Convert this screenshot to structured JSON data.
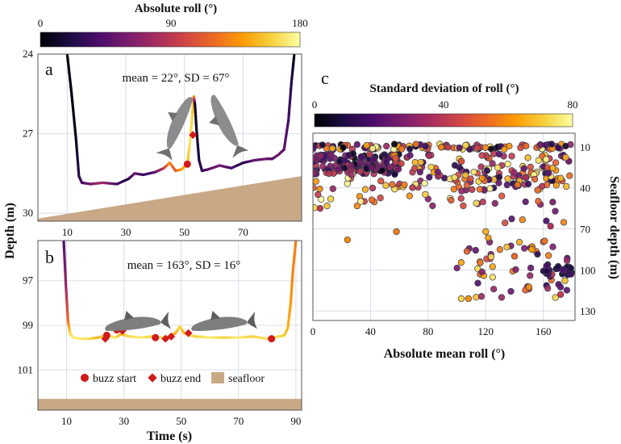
{
  "colors": {
    "inferno": [
      "#000004",
      "#1b0c41",
      "#4a0c6b",
      "#781c6d",
      "#a52c60",
      "#cf4446",
      "#ed6925",
      "#fb9b06",
      "#f7d13d",
      "#fcffa4"
    ],
    "seafloor": "#c9a886",
    "marker": "#d11a1a",
    "grid": "#d8dde8",
    "frame": "#555555"
  },
  "colorbar_a": {
    "label": "Absolute roll (°)",
    "ticks": [
      "0",
      "90",
      "180"
    ]
  },
  "colorbar_c": {
    "label": "Standard deviation of roll (°)",
    "ticks": [
      "0",
      "40",
      "80"
    ]
  },
  "legend": {
    "buzz_start": "buzz start",
    "buzz_end": "buzz end",
    "seafloor": "seafloor"
  },
  "shared": {
    "ylabel": "Depth (m)",
    "xlabel": "Time (s)"
  },
  "chart_data": [
    {
      "panel": "a",
      "type": "line",
      "stats": "mean = 22°, SD = 67°",
      "xlim": [
        0,
        90
      ],
      "ylim": [
        24,
        30.3
      ],
      "y_inverted": true,
      "xticks": [
        "10",
        "30",
        "50",
        "70"
      ],
      "yticks": [
        "24",
        "27",
        "30"
      ],
      "seafloor": [
        [
          0,
          30.2
        ],
        [
          90,
          28.6
        ]
      ],
      "x": [
        10,
        11.5,
        13,
        14,
        15,
        18,
        22,
        27,
        31,
        33,
        36,
        40,
        43,
        45,
        47,
        49,
        51,
        52,
        52.7,
        53.2,
        53.6,
        54.1,
        55,
        56,
        58,
        62,
        66,
        70,
        74,
        78,
        80,
        82,
        84,
        85.5,
        86.5,
        87.5
      ],
      "depth": [
        24,
        25.5,
        27.2,
        28.6,
        28.85,
        28.9,
        28.85,
        28.9,
        28.7,
        28.5,
        28.55,
        28.45,
        28.3,
        28.1,
        28.4,
        28.35,
        28.15,
        27.2,
        26.3,
        25.6,
        25.9,
        26.8,
        28,
        28.4,
        28.35,
        28.2,
        28.3,
        28.1,
        28.0,
        27.95,
        27.95,
        27.8,
        27.6,
        26.5,
        25.1,
        24
      ],
      "roll": [
        5,
        5,
        8,
        25,
        40,
        55,
        80,
        40,
        20,
        60,
        30,
        45,
        90,
        135,
        110,
        140,
        150,
        170,
        160,
        150,
        15,
        10,
        20,
        30,
        45,
        60,
        40,
        25,
        50,
        55,
        45,
        60,
        50,
        40,
        25,
        5
      ],
      "buzz_start": [
        [
          51,
          28.15
        ]
      ],
      "buzz_end": [
        [
          52.9,
          27.05
        ]
      ]
    },
    {
      "panel": "b",
      "type": "line",
      "stats": "mean = 163°, SD = 16°",
      "xlim": [
        0,
        92
      ],
      "ylim": [
        95.2,
        102.8
      ],
      "y_inverted": true,
      "xticks": [
        "10",
        "30",
        "50",
        "70",
        "90"
      ],
      "yticks": [
        "97",
        "99",
        "101"
      ],
      "seafloor": [
        [
          0,
          102.3
        ],
        [
          92,
          102.3
        ]
      ],
      "x": [
        9,
        9.8,
        10.5,
        11.3,
        12.5,
        15,
        18,
        21,
        24,
        27,
        29,
        32,
        36,
        40,
        43,
        46,
        48,
        49.5,
        51,
        53,
        55,
        60,
        65,
        70,
        75,
        80,
        84,
        86,
        87.2,
        88.2,
        89,
        90
      ],
      "depth": [
        95.2,
        97.3,
        98.8,
        99.4,
        99.55,
        99.6,
        99.6,
        99.55,
        99.45,
        99.55,
        99.4,
        99.5,
        99.55,
        99.5,
        99.55,
        99.5,
        99.35,
        99.05,
        99.35,
        99.45,
        99.5,
        99.55,
        99.55,
        99.55,
        99.5,
        99.6,
        99.5,
        99.45,
        99.1,
        98.0,
        96.5,
        95.2
      ],
      "roll": [
        40,
        75,
        120,
        165,
        170,
        172,
        165,
        150,
        160,
        170,
        150,
        165,
        172,
        160,
        170,
        155,
        145,
        165,
        150,
        170,
        160,
        172,
        160,
        172,
        160,
        168,
        165,
        160,
        150,
        140,
        130,
        130
      ],
      "buzz_start": [
        [
          24,
          99.45
        ],
        [
          27.5,
          99.2
        ],
        [
          41,
          99.55
        ],
        [
          81.5,
          99.6
        ]
      ],
      "buzz_end": [
        [
          23.5,
          99.6
        ],
        [
          29.5,
          99.25
        ],
        [
          44.5,
          99.6
        ],
        [
          46.5,
          99.5
        ],
        [
          52.5,
          99.35
        ]
      ]
    },
    {
      "panel": "c",
      "type": "scatter",
      "xlabel": "Absolute mean roll (°)",
      "ylabel": "Seafloor depth (m)",
      "xlim": [
        0,
        182
      ],
      "ylim": [
        0,
        137
      ],
      "y_inverted": true,
      "xticks": [
        "0",
        "40",
        "80",
        "120",
        "160"
      ],
      "yticks": [
        "10",
        "40",
        "70",
        "100",
        "130"
      ],
      "color_range": [
        0,
        80
      ],
      "clusters": [
        {
          "x_range": [
            0,
            180
          ],
          "y_range": [
            8,
            12
          ],
          "sd_range": [
            0,
            80
          ],
          "count": 110
        },
        {
          "x_range": [
            0,
            60
          ],
          "y_range": [
            15,
            30
          ],
          "sd_range": [
            0,
            45
          ],
          "count": 160
        },
        {
          "x_range": [
            55,
            180
          ],
          "y_range": [
            15,
            42
          ],
          "sd_range": [
            10,
            80
          ],
          "count": 150
        },
        {
          "x_range": [
            0,
            120
          ],
          "y_range": [
            30,
            55
          ],
          "sd_range": [
            30,
            80
          ],
          "count": 50
        },
        {
          "x_range": [
            125,
            178
          ],
          "y_range": [
            45,
            72
          ],
          "sd_range": [
            15,
            75
          ],
          "count": 12
        },
        {
          "x_range": [
            100,
            178
          ],
          "y_range": [
            76,
            122
          ],
          "sd_range": [
            10,
            75
          ],
          "count": 60
        },
        {
          "x_range": [
            160,
            180
          ],
          "y_range": [
            97,
            104
          ],
          "sd_range": [
            0,
            20
          ],
          "count": 25
        }
      ],
      "points": [
        [
          5,
          55
        ],
        [
          24,
          78
        ],
        [
          58,
          72
        ],
        [
          120,
          72
        ],
        [
          165,
          68
        ],
        [
          103,
          121
        ],
        [
          108,
          121
        ],
        [
          172,
          118
        ],
        [
          140,
          90
        ],
        [
          152,
          85
        ]
      ]
    }
  ]
}
